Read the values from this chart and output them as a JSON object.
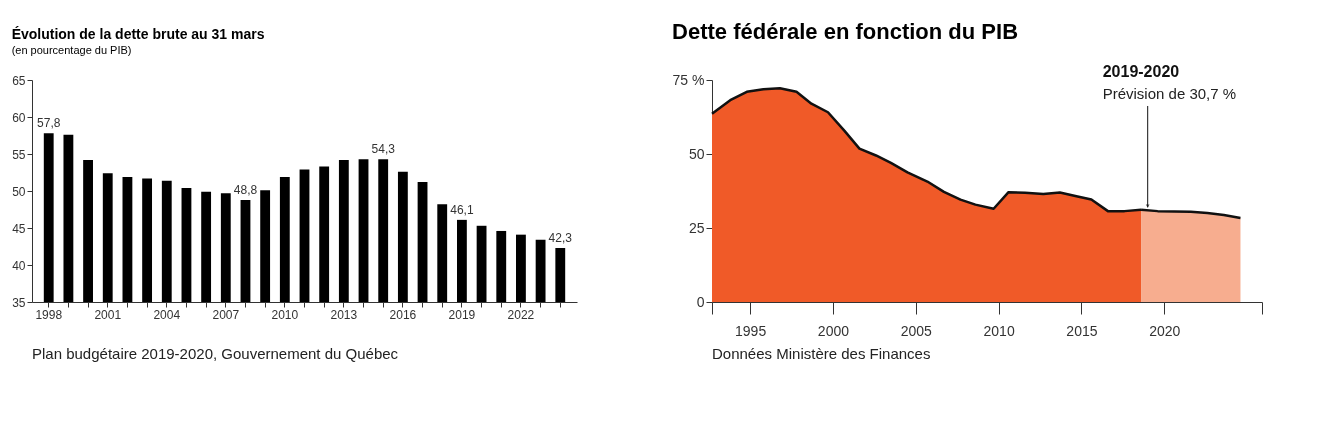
{
  "chart_data": [
    {
      "type": "bar",
      "title": "Évolution de la dette brute au 31 mars",
      "subtitle": "(en pourcentage du PIB)",
      "categories": [
        "1998",
        null,
        null,
        "2001",
        null,
        null,
        "2004",
        null,
        null,
        "2007",
        null,
        null,
        "2010",
        null,
        null,
        "2013",
        null,
        null,
        "2016",
        null,
        null,
        "2019",
        null,
        null,
        "2022",
        null,
        null
      ],
      "values": [
        57.8,
        57.6,
        54.2,
        52.4,
        51.9,
        51.7,
        51.4,
        50.4,
        49.9,
        49.7,
        48.8,
        50.1,
        51.9,
        52.9,
        53.3,
        54.2,
        54.3,
        54.3,
        52.6,
        51.2,
        48.2,
        46.1,
        45.3,
        44.6,
        44.1,
        43.4,
        42.3
      ],
      "value_labels": [
        "57,8",
        null,
        null,
        null,
        null,
        null,
        null,
        null,
        null,
        null,
        "48,8",
        null,
        null,
        null,
        null,
        null,
        null,
        "54,3",
        null,
        null,
        null,
        "46,1",
        null,
        null,
        null,
        null,
        "42,3"
      ],
      "color": "#000000",
      "ylim": [
        35,
        65
      ],
      "yticks": [
        35,
        40,
        45,
        50,
        55,
        60,
        65
      ],
      "annotations": [
        "Plan budgétaire 2019-2020, Gouvernement du Québec"
      ]
    },
    {
      "type": "area",
      "title": "Dette fédérale en fonction du PIB",
      "xlim": [
        1992.7,
        2025.9
      ],
      "xticks": [
        {
          "value": 1992.7,
          "label": null
        },
        1995,
        2000,
        2005,
        2010,
        2015,
        2020,
        {
          "value": 2025.9,
          "label": null
        }
      ],
      "ylim": [
        0,
        75
      ],
      "yticks": [
        0,
        25,
        50,
        {
          "value": 75,
          "label": "75 %"
        }
      ],
      "series": [
        {
          "color": "#f05a28",
          "x": [
            1992.7,
            1993.8,
            1994.8,
            1995.8,
            1996.8,
            1997.8,
            1998.7,
            1999.7,
            2000.7,
            2001.6,
            2002.6,
            2003.5,
            2004.5,
            2005.7,
            2006.7,
            2007.7,
            2008.6,
            2009.7,
            2010.6,
            2011.6,
            2012.7,
            2013.7,
            2014.7,
            2015.6,
            2016.6,
            2017.6,
            2018.6
          ],
          "values": [
            63.6,
            68.2,
            71.0,
            71.9,
            72.2,
            71.0,
            67.0,
            64.1,
            57.8,
            51.8,
            49.5,
            47.0,
            43.8,
            40.7,
            37.2,
            34.6,
            32.9,
            31.5,
            37.1,
            36.9,
            36.5,
            37.0,
            35.7,
            34.6,
            30.7,
            30.7,
            31.2
          ]
        },
        {
          "color": "#f7ad8f",
          "x": [
            2018.6,
            2019.6,
            2020.6,
            2021.6,
            2022.6,
            2023.6,
            2024.6
          ],
          "values": [
            31.2,
            30.7,
            30.6,
            30.5,
            30.1,
            29.4,
            28.4
          ]
        }
      ],
      "annotations": [
        "2019-2020",
        {
          "text": "Prévision de 30,7 %",
          "x": 2019,
          "y": 31.0
        },
        "Données Ministère des Finances"
      ]
    }
  ]
}
